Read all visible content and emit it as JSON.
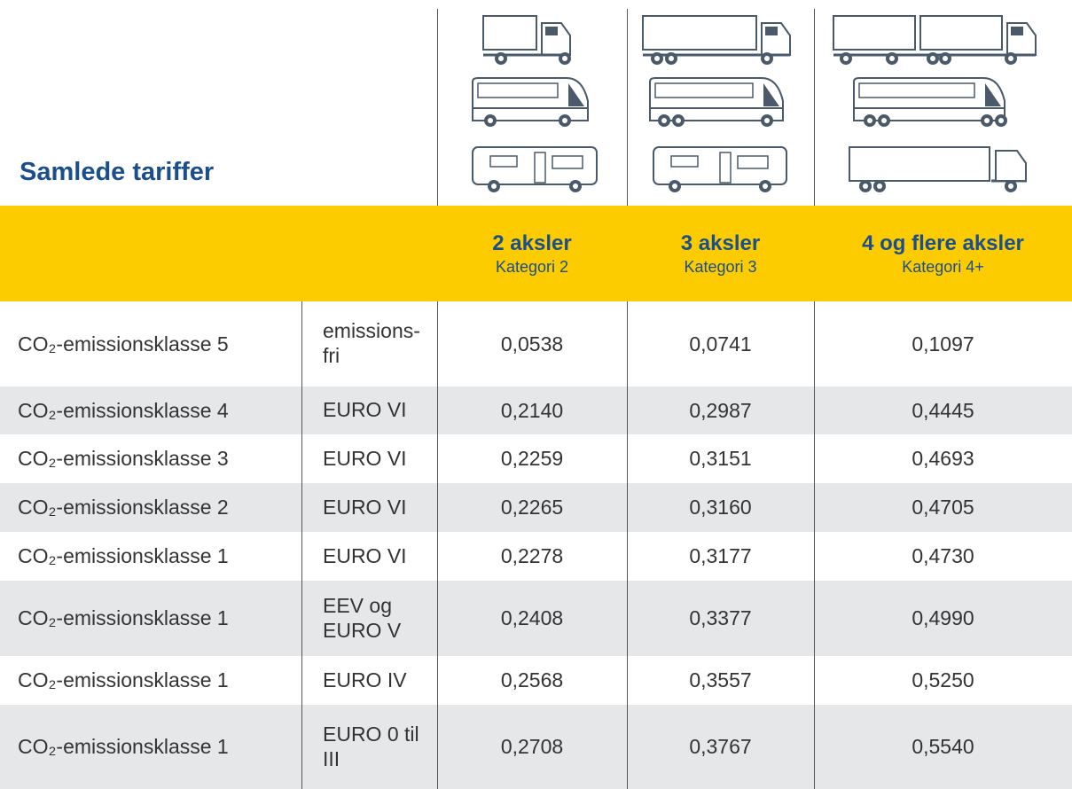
{
  "title": "Samlede tariffer",
  "columns": [
    {
      "name": "2 aksler",
      "category": "Kategori 2"
    },
    {
      "name": "3 aksler",
      "category": "Kategori 3"
    },
    {
      "name": "4 og flere aksler",
      "category": "Kategori 4+"
    }
  ],
  "rows": [
    [
      "CO₂-emissionsklasse 5",
      "emissions-fri",
      "0,0538",
      "0,0741",
      "0,1097"
    ],
    [
      "CO₂-emissionsklasse 4",
      "EURO VI",
      "0,2140",
      "0,2987",
      "0,4445"
    ],
    [
      "CO₂-emissionsklasse 3",
      "EURO VI",
      "0,2259",
      "0,3151",
      "0,4693"
    ],
    [
      "CO₂-emissionsklasse 2",
      "EURO VI",
      "0,2265",
      "0,3160",
      "0,4705"
    ],
    [
      "CO₂-emissionsklasse 1",
      "EURO VI",
      "0,2278",
      "0,3177",
      "0,4730"
    ],
    [
      "CO₂-emissionsklasse 1",
      "EEV og EURO V",
      "0,2408",
      "0,3377",
      "0,4990"
    ],
    [
      "CO₂-emissionsklasse 1",
      "EURO IV",
      "0,2568",
      "0,3557",
      "0,5250"
    ],
    [
      "CO₂-emissionsklasse 1",
      "EURO 0 til III",
      "0,2708",
      "0,3767",
      "0,5540"
    ]
  ]
}
